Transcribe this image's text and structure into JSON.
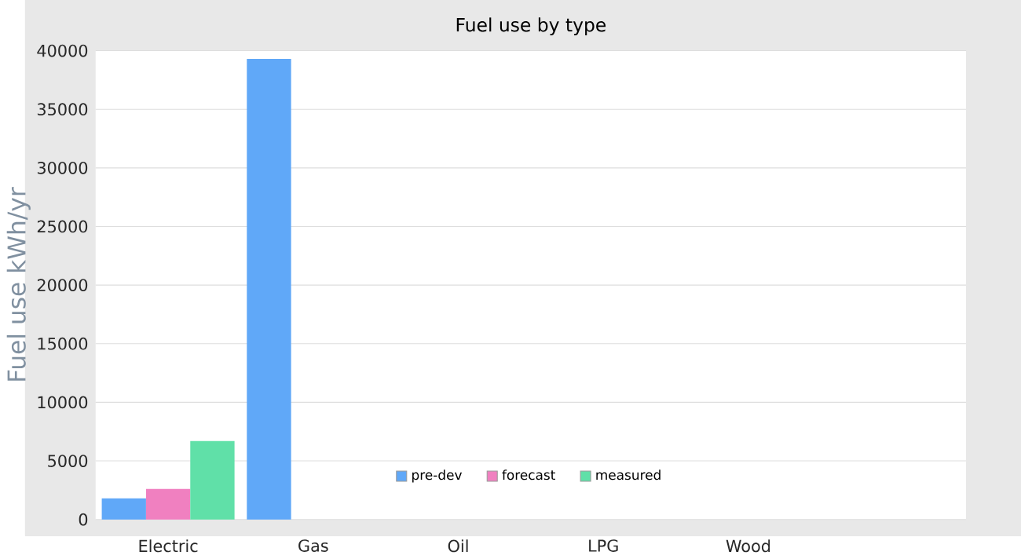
{
  "chart_data": {
    "type": "bar",
    "title": "Fuel use by type",
    "ylabel": "Fuel use  kWh/yr",
    "categories": [
      "Electric",
      "Gas",
      "Oil",
      "LPG",
      "Wood",
      null
    ],
    "series": [
      {
        "name": "pre-dev",
        "color": "#60a8f8",
        "values": [
          1800,
          39300,
          null,
          null,
          null,
          null
        ]
      },
      {
        "name": "forecast",
        "color": "#f080c0",
        "values": [
          2600,
          null,
          null,
          null,
          null,
          null
        ]
      },
      {
        "name": "measured",
        "color": "#60e0a8",
        "values": [
          6700,
          null,
          null,
          null,
          null,
          null
        ]
      }
    ],
    "ylim": [
      0,
      40000
    ],
    "yticks": [
      0,
      5000,
      10000,
      15000,
      20000,
      25000,
      30000,
      35000,
      40000
    ],
    "grid": "y",
    "legend": "bottom"
  }
}
